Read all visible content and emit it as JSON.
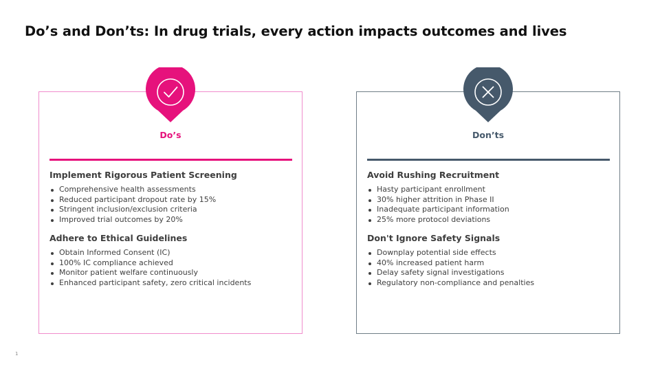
{
  "slide": {
    "title": "Do’s and Don’ts: In drug trials, every action impacts outcomes and lives",
    "page_number": "1"
  },
  "colors": {
    "dos_accent": "#E6127C",
    "donts_accent": "#46596B"
  },
  "dos": {
    "icon": "checkmark-icon",
    "heading": "Do’s",
    "sections": [
      {
        "title": "Implement Rigorous Patient Screening",
        "bullets": [
          "Comprehensive health assessments",
          "Reduced participant dropout rate by 15%",
          "Stringent inclusion/exclusion criteria",
          "Improved trial outcomes by 20%"
        ]
      },
      {
        "title": "Adhere to Ethical Guidelines",
        "bullets": [
          "Obtain Informed Consent (IC)",
          "100% IC compliance achieved",
          "Monitor patient welfare continuously",
          "Enhanced participant safety, zero critical incidents"
        ]
      }
    ]
  },
  "donts": {
    "icon": "x-mark-icon",
    "heading": "Don’ts",
    "sections": [
      {
        "title": "Avoid Rushing Recruitment",
        "bullets": [
          "Hasty participant enrollment",
          "30% higher attrition in Phase II",
          "Inadequate participant information",
          "25% more protocol deviations"
        ]
      },
      {
        "title": "Don't Ignore Safety Signals",
        "bullets": [
          "Downplay potential side effects",
          "40% increased patient harm",
          "Delay safety signal investigations",
          "Regulatory non-compliance and penalties"
        ]
      }
    ]
  }
}
